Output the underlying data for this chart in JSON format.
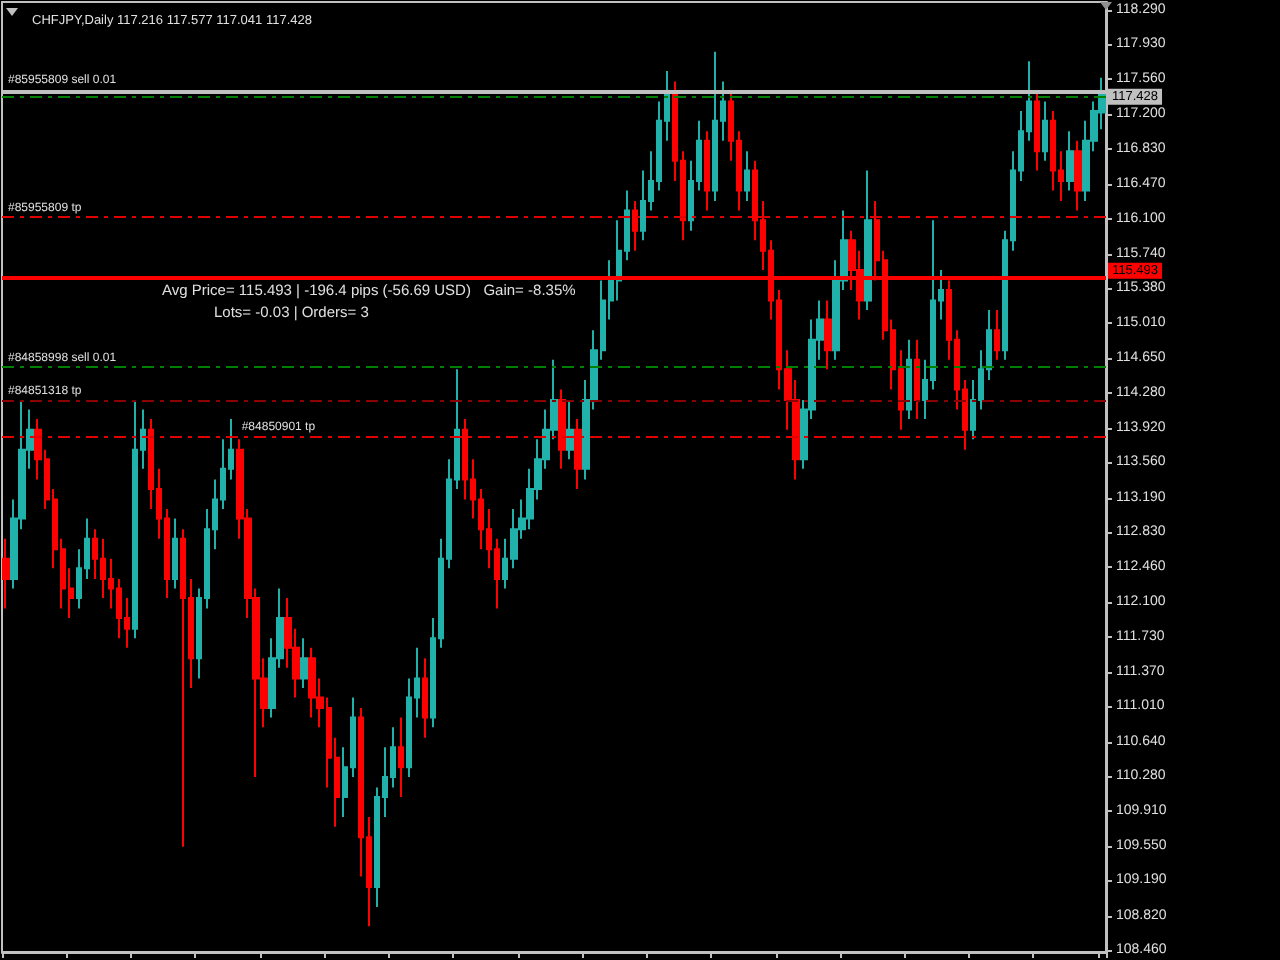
{
  "chart_data": {
    "type": "candlestick",
    "title": "CHFJPY,Daily 117.216 117.577 117.041 117.428",
    "categories": [
      null,
      null,
      null,
      null,
      null,
      null,
      null,
      null,
      null,
      null,
      null,
      null,
      null,
      null,
      null,
      null,
      null,
      null,
      null,
      null,
      null,
      null,
      null,
      null,
      null,
      null,
      null,
      null,
      null,
      null,
      null,
      null,
      null,
      null,
      null,
      null,
      null,
      null,
      null,
      null,
      null,
      null,
      null,
      null,
      null,
      null,
      null,
      null,
      null,
      null,
      null,
      null,
      null,
      null,
      null,
      null,
      null,
      null,
      null,
      null,
      null,
      null,
      null,
      null,
      null,
      null,
      null,
      null,
      null,
      null,
      null,
      null,
      null,
      null,
      null,
      null,
      null,
      null,
      null,
      null,
      null,
      null,
      null,
      null,
      null,
      null,
      null,
      null,
      null,
      null,
      null,
      null,
      null,
      null,
      null,
      null,
      null,
      null,
      null,
      null,
      null,
      null,
      null,
      null,
      null,
      null,
      null,
      null,
      null,
      null,
      null,
      null,
      null,
      null,
      null,
      null,
      null,
      null,
      null,
      null,
      null,
      null,
      null,
      null,
      null,
      null,
      null,
      null,
      null,
      null,
      null,
      null,
      null,
      null,
      null,
      null,
      null
    ],
    "ohlc": [
      [
        112.55,
        112.76,
        112.03,
        112.34
      ],
      [
        112.34,
        113.17,
        112.24,
        112.97
      ],
      [
        112.97,
        114.21,
        112.86,
        113.69
      ],
      [
        113.69,
        114.11,
        113.49,
        113.9
      ],
      [
        113.9,
        114.01,
        113.38,
        113.59
      ],
      [
        113.59,
        113.69,
        113.07,
        113.17
      ],
      [
        113.17,
        113.28,
        112.45,
        112.65
      ],
      [
        112.65,
        112.76,
        112.03,
        112.24
      ],
      [
        112.24,
        112.45,
        111.93,
        112.14
      ],
      [
        112.14,
        112.65,
        112.03,
        112.45
      ],
      [
        112.45,
        112.97,
        112.34,
        112.76
      ],
      [
        112.76,
        112.86,
        112.34,
        112.55
      ],
      [
        112.55,
        112.76,
        112.14,
        112.34
      ],
      [
        112.34,
        112.55,
        112.03,
        112.24
      ],
      [
        112.24,
        112.34,
        111.72,
        111.93
      ],
      [
        111.93,
        112.14,
        111.62,
        111.82
      ],
      [
        111.82,
        114.21,
        111.72,
        113.69
      ],
      [
        113.69,
        114.11,
        113.49,
        113.9
      ],
      [
        113.9,
        114.01,
        113.07,
        113.28
      ],
      [
        113.28,
        113.49,
        112.76,
        112.97
      ],
      [
        112.97,
        113.07,
        112.14,
        112.34
      ],
      [
        112.34,
        112.97,
        112.24,
        112.76
      ],
      [
        112.76,
        112.86,
        109.54,
        112.14
      ],
      [
        112.14,
        112.34,
        111.2,
        111.51
      ],
      [
        111.51,
        112.24,
        111.3,
        112.14
      ],
      [
        112.14,
        113.07,
        112.03,
        112.86
      ],
      [
        112.86,
        113.38,
        112.65,
        113.17
      ],
      [
        113.17,
        113.8,
        113.07,
        113.49
      ],
      [
        113.49,
        114.01,
        113.38,
        113.69
      ],
      [
        113.69,
        113.8,
        112.76,
        112.97
      ],
      [
        112.97,
        113.07,
        111.93,
        112.14
      ],
      [
        112.14,
        112.24,
        110.27,
        111.3
      ],
      [
        111.3,
        111.51,
        110.79,
        110.99
      ],
      [
        110.99,
        111.72,
        110.89,
        111.51
      ],
      [
        111.51,
        112.24,
        111.41,
        111.93
      ],
      [
        111.93,
        112.14,
        111.41,
        111.62
      ],
      [
        111.62,
        111.82,
        111.1,
        111.3
      ],
      [
        111.3,
        111.72,
        111.2,
        111.51
      ],
      [
        111.51,
        111.62,
        110.89,
        111.1
      ],
      [
        111.1,
        111.3,
        110.79,
        110.99
      ],
      [
        110.99,
        111.1,
        110.16,
        110.47
      ],
      [
        110.47,
        110.68,
        109.75,
        110.06
      ],
      [
        110.06,
        110.58,
        109.85,
        110.37
      ],
      [
        110.37,
        111.1,
        110.27,
        110.89
      ],
      [
        110.89,
        110.99,
        109.23,
        109.64
      ],
      [
        109.64,
        109.85,
        108.71,
        109.12
      ],
      [
        109.12,
        110.16,
        108.91,
        110.06
      ],
      [
        110.06,
        110.58,
        109.85,
        110.27
      ],
      [
        110.27,
        110.79,
        110.16,
        110.58
      ],
      [
        110.58,
        110.89,
        110.06,
        110.37
      ],
      [
        110.37,
        111.3,
        110.27,
        111.1
      ],
      [
        111.1,
        111.62,
        110.89,
        111.3
      ],
      [
        111.3,
        111.51,
        110.68,
        110.89
      ],
      [
        110.89,
        111.93,
        110.79,
        111.72
      ],
      [
        111.72,
        112.76,
        111.62,
        112.55
      ],
      [
        112.55,
        113.59,
        112.45,
        113.38
      ],
      [
        113.38,
        114.53,
        113.28,
        113.9
      ],
      [
        113.9,
        114.01,
        113.17,
        113.38
      ],
      [
        113.38,
        113.59,
        112.97,
        113.17
      ],
      [
        113.17,
        113.28,
        112.65,
        112.86
      ],
      [
        112.86,
        113.07,
        112.45,
        112.65
      ],
      [
        112.65,
        112.76,
        112.03,
        112.34
      ],
      [
        112.34,
        112.76,
        112.24,
        112.55
      ],
      [
        112.55,
        113.07,
        112.45,
        112.86
      ],
      [
        112.86,
        113.17,
        112.76,
        112.97
      ],
      [
        112.97,
        113.49,
        112.86,
        113.28
      ],
      [
        113.28,
        113.8,
        113.17,
        113.59
      ],
      [
        113.59,
        114.11,
        113.49,
        113.9
      ],
      [
        113.9,
        114.63,
        113.8,
        114.21
      ],
      [
        114.21,
        114.32,
        113.49,
        113.69
      ],
      [
        113.69,
        114.21,
        113.59,
        113.9
      ],
      [
        113.9,
        114.01,
        113.28,
        113.49
      ],
      [
        113.49,
        114.42,
        113.38,
        114.21
      ],
      [
        114.21,
        114.94,
        114.11,
        114.73
      ],
      [
        114.73,
        115.46,
        114.63,
        115.25
      ],
      [
        115.25,
        115.67,
        115.05,
        115.46
      ],
      [
        115.46,
        116.09,
        115.25,
        115.77
      ],
      [
        115.77,
        116.4,
        115.67,
        116.19
      ],
      [
        116.19,
        116.29,
        115.77,
        115.98
      ],
      [
        115.98,
        116.61,
        115.88,
        116.29
      ],
      [
        116.29,
        116.81,
        116.19,
        116.5
      ],
      [
        116.5,
        117.33,
        116.4,
        117.13
      ],
      [
        117.13,
        117.65,
        116.92,
        117.44
      ],
      [
        117.44,
        117.54,
        116.5,
        116.71
      ],
      [
        116.71,
        116.81,
        115.88,
        116.09
      ],
      [
        116.09,
        116.71,
        115.98,
        116.5
      ],
      [
        116.5,
        117.13,
        116.4,
        116.92
      ],
      [
        116.92,
        117.02,
        116.19,
        116.4
      ],
      [
        116.4,
        117.85,
        116.29,
        117.13
      ],
      [
        117.13,
        117.54,
        116.92,
        117.33
      ],
      [
        117.33,
        117.44,
        116.71,
        116.92
      ],
      [
        116.92,
        117.02,
        116.19,
        116.4
      ],
      [
        116.4,
        116.81,
        116.29,
        116.61
      ],
      [
        116.61,
        116.71,
        115.88,
        116.09
      ],
      [
        116.09,
        116.29,
        115.57,
        115.77
      ],
      [
        115.77,
        115.88,
        115.05,
        115.25
      ],
      [
        115.25,
        115.36,
        114.32,
        114.53
      ],
      [
        114.53,
        114.73,
        113.9,
        114.21
      ],
      [
        114.21,
        114.42,
        113.38,
        113.59
      ],
      [
        113.59,
        114.21,
        113.49,
        114.11
      ],
      [
        114.11,
        115.05,
        114.01,
        114.84
      ],
      [
        114.84,
        115.25,
        114.63,
        115.05
      ],
      [
        115.05,
        115.25,
        114.53,
        114.73
      ],
      [
        114.73,
        115.67,
        114.63,
        115.46
      ],
      [
        115.46,
        116.19,
        115.36,
        115.88
      ],
      [
        115.88,
        115.98,
        115.36,
        115.57
      ],
      [
        115.57,
        115.77,
        115.05,
        115.25
      ],
      [
        115.25,
        116.61,
        115.15,
        116.09
      ],
      [
        116.09,
        116.29,
        115.46,
        115.67
      ],
      [
        115.67,
        115.77,
        114.84,
        114.94
      ],
      [
        114.94,
        115.05,
        114.32,
        114.53
      ],
      [
        114.53,
        114.73,
        113.9,
        114.11
      ],
      [
        114.11,
        114.84,
        114.01,
        114.63
      ],
      [
        114.63,
        114.84,
        114.01,
        114.21
      ],
      [
        114.21,
        114.63,
        114.01,
        114.42
      ],
      [
        114.42,
        116.09,
        114.32,
        115.25
      ],
      [
        115.25,
        115.57,
        115.05,
        115.36
      ],
      [
        115.36,
        115.46,
        114.63,
        114.84
      ],
      [
        114.84,
        114.94,
        114.11,
        114.32
      ],
      [
        114.32,
        114.42,
        113.69,
        113.9
      ],
      [
        113.9,
        114.42,
        113.8,
        114.21
      ],
      [
        114.21,
        114.73,
        114.11,
        114.53
      ],
      [
        114.53,
        115.15,
        114.42,
        114.94
      ],
      [
        114.94,
        115.15,
        114.63,
        114.73
      ],
      [
        114.73,
        115.98,
        114.63,
        115.88
      ],
      [
        115.88,
        116.81,
        115.77,
        116.61
      ],
      [
        116.61,
        117.23,
        116.5,
        117.02
      ],
      [
        117.02,
        117.75,
        116.92,
        117.33
      ],
      [
        117.33,
        117.44,
        116.61,
        116.81
      ],
      [
        116.81,
        117.33,
        116.71,
        117.13
      ],
      [
        117.13,
        117.23,
        116.4,
        116.61
      ],
      [
        116.61,
        116.81,
        116.29,
        116.5
      ],
      [
        116.5,
        117.02,
        116.4,
        116.81
      ],
      [
        116.81,
        116.92,
        116.19,
        116.4
      ],
      [
        116.4,
        117.13,
        116.29,
        116.92
      ],
      [
        116.92,
        117.33,
        116.81,
        117.23
      ],
      [
        117.216,
        117.577,
        117.041,
        117.428
      ]
    ],
    "colors": [
      "#ff0000",
      "#20b2aa",
      "#20b2aa",
      "#20b2aa",
      "#ff0000",
      "#ff0000",
      "#ff0000",
      "#ff0000",
      "#ff0000",
      "#20b2aa",
      "#20b2aa",
      "#ff0000",
      "#ff0000",
      "#ff0000",
      "#ff0000",
      "#ff0000",
      "#20b2aa",
      "#20b2aa",
      "#ff0000",
      "#ff0000",
      "#ff0000",
      "#20b2aa",
      "#ff0000",
      "#ff0000",
      "#20b2aa",
      "#20b2aa",
      "#20b2aa",
      "#20b2aa",
      "#20b2aa",
      "#ff0000",
      "#ff0000",
      "#ff0000",
      "#ff0000",
      "#20b2aa",
      "#20b2aa",
      "#ff0000",
      "#ff0000",
      "#20b2aa",
      "#ff0000",
      "#ff0000",
      "#ff0000",
      "#ff0000",
      "#20b2aa",
      "#20b2aa",
      "#ff0000",
      "#ff0000",
      "#20b2aa",
      "#20b2aa",
      "#20b2aa",
      "#ff0000",
      "#20b2aa",
      "#20b2aa",
      "#ff0000",
      "#20b2aa",
      "#20b2aa",
      "#20b2aa",
      "#20b2aa",
      "#ff0000",
      "#ff0000",
      "#ff0000",
      "#ff0000",
      "#ff0000",
      "#20b2aa",
      "#20b2aa",
      "#20b2aa",
      "#20b2aa",
      "#20b2aa",
      "#20b2aa",
      "#20b2aa",
      "#ff0000",
      "#20b2aa",
      "#ff0000",
      "#20b2aa",
      "#20b2aa",
      "#20b2aa",
      "#20b2aa",
      "#20b2aa",
      "#20b2aa",
      "#ff0000",
      "#20b2aa",
      "#20b2aa",
      "#20b2aa",
      "#20b2aa",
      "#ff0000",
      "#ff0000",
      "#20b2aa",
      "#20b2aa",
      "#ff0000",
      "#20b2aa",
      "#20b2aa",
      "#ff0000",
      "#ff0000",
      "#20b2aa",
      "#ff0000",
      "#ff0000",
      "#ff0000",
      "#ff0000",
      "#ff0000",
      "#ff0000",
      "#20b2aa",
      "#20b2aa",
      "#20b2aa",
      "#ff0000",
      "#20b2aa",
      "#20b2aa",
      "#ff0000",
      "#ff0000",
      "#20b2aa",
      "#ff0000",
      "#ff0000",
      "#ff0000",
      "#ff0000",
      "#20b2aa",
      "#ff0000",
      "#20b2aa",
      "#20b2aa",
      "#20b2aa",
      "#ff0000",
      "#ff0000",
      "#ff0000",
      "#20b2aa",
      "#20b2aa",
      "#20b2aa",
      "#ff0000",
      "#20b2aa",
      "#20b2aa",
      "#20b2aa",
      "#20b2aa",
      "#ff0000",
      "#20b2aa",
      "#ff0000",
      "#ff0000",
      "#20b2aa",
      "#ff0000",
      "#20b2aa",
      "#20b2aa",
      "#20b2aa"
    ],
    "ylim": [
      108.44,
      118.37
    ],
    "yticks": [
      {
        "value": 118.29,
        "label": "118.290"
      },
      {
        "value": 117.93,
        "label": "117.930"
      },
      {
        "value": 117.56,
        "label": "117.560"
      },
      {
        "value": 117.2,
        "label": "117.200"
      },
      {
        "value": 116.83,
        "label": "116.830"
      },
      {
        "value": 116.47,
        "label": "116.470"
      },
      {
        "value": 116.1,
        "label": "116.100"
      },
      {
        "value": 115.74,
        "label": "115.740"
      },
      {
        "value": 115.38,
        "label": "115.380"
      },
      {
        "value": 115.01,
        "label": "115.010"
      },
      {
        "value": 114.65,
        "label": "114.650"
      },
      {
        "value": 114.28,
        "label": "114.280"
      },
      {
        "value": 113.92,
        "label": "113.920"
      },
      {
        "value": 113.56,
        "label": "113.560"
      },
      {
        "value": 113.19,
        "label": "113.190"
      },
      {
        "value": 112.83,
        "label": "112.830"
      },
      {
        "value": 112.46,
        "label": "112.460"
      },
      {
        "value": 112.1,
        "label": "112.100"
      },
      {
        "value": 111.73,
        "label": "111.730"
      },
      {
        "value": 111.37,
        "label": "111.370"
      },
      {
        "value": 111.01,
        "label": "111.010"
      },
      {
        "value": 110.64,
        "label": "110.640"
      },
      {
        "value": 110.28,
        "label": "110.280"
      },
      {
        "value": 109.91,
        "label": "109.910"
      },
      {
        "value": 109.55,
        "label": "109.550"
      },
      {
        "value": 109.19,
        "label": "109.190"
      },
      {
        "value": 108.82,
        "label": "108.820"
      },
      {
        "value": 108.46,
        "label": "108.460"
      }
    ],
    "tick_labels": "y",
    "ref_lines": [
      {
        "axis": "y",
        "value": 117.428,
        "label": "117.428",
        "color": "#c0c0c0",
        "line_style": "solid"
      },
      {
        "axis": "y",
        "value": 117.39,
        "label": "#85955809 sell 0.01",
        "color": "#008000",
        "line_style": "dashed"
      },
      {
        "axis": "y",
        "value": 116.12,
        "label": "#85955809 tp",
        "color": "#e00000",
        "line_style": "dashed"
      },
      {
        "axis": "y",
        "value": 115.493,
        "label": "115.493",
        "color": "#ff0000",
        "line_style": "solid"
      },
      {
        "axis": "y",
        "value": 114.55,
        "label": "#84858998 sell 0.01",
        "color": "#008000",
        "line_style": "dashed"
      },
      {
        "axis": "y",
        "value": 114.21,
        "label": "#84851318 tp",
        "color": "#8b0000",
        "line_style": "dashed"
      },
      {
        "axis": "y",
        "value": 113.83,
        "label": "#84850901 tp",
        "color": "#e00000",
        "line_style": "dashed"
      }
    ],
    "annotations": [
      "Avg Price= 115.493 | -196.4 pips (-56.69 USD)   Gain= -8.35%",
      "Lots= -0.03 | Orders= 3"
    ]
  }
}
